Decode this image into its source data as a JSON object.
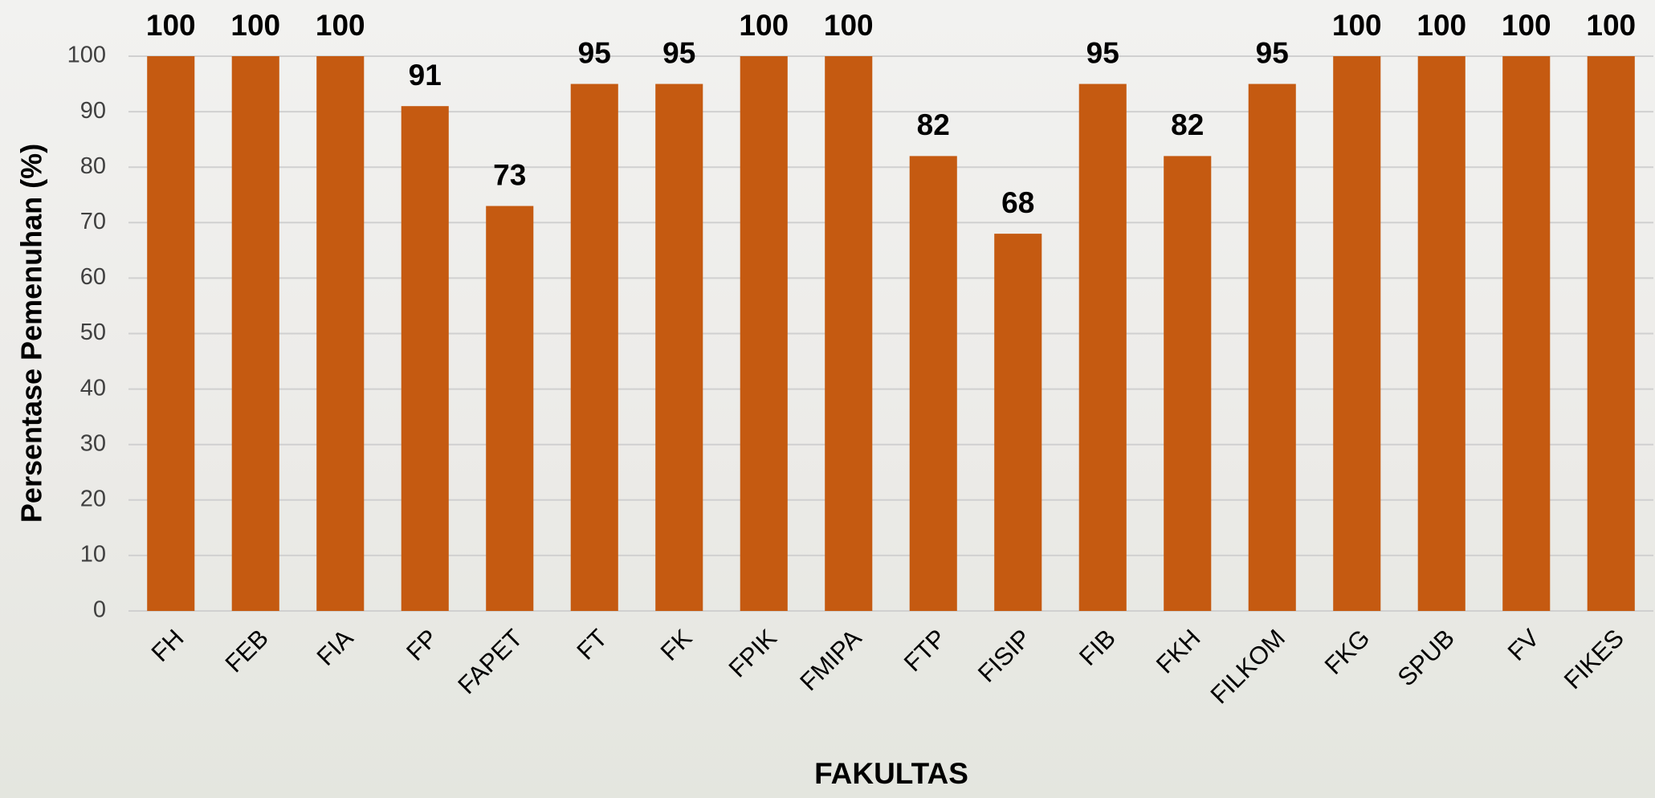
{
  "chart_data": {
    "type": "bar",
    "categories": [
      "FH",
      "FEB",
      "FIA",
      "FP",
      "FAPET",
      "FT",
      "FK",
      "FPIK",
      "FMIPA",
      "FTP",
      "FISIP",
      "FIB",
      "FKH",
      "FILKOM",
      "FKG",
      "SPUB",
      "FV",
      "FIKES"
    ],
    "values": [
      100,
      100,
      100,
      91,
      73,
      95,
      95,
      100,
      100,
      82,
      68,
      95,
      82,
      95,
      100,
      100,
      100,
      100
    ],
    "color": "#c55a11",
    "x_label": "FAKULTAS",
    "y_label": "Persentase Pemenuhan (%)",
    "ylim": [
      0,
      100
    ],
    "yticks": [
      0,
      10,
      20,
      30,
      40,
      50,
      60,
      70,
      80,
      90,
      100
    ],
    "grid": true
  }
}
